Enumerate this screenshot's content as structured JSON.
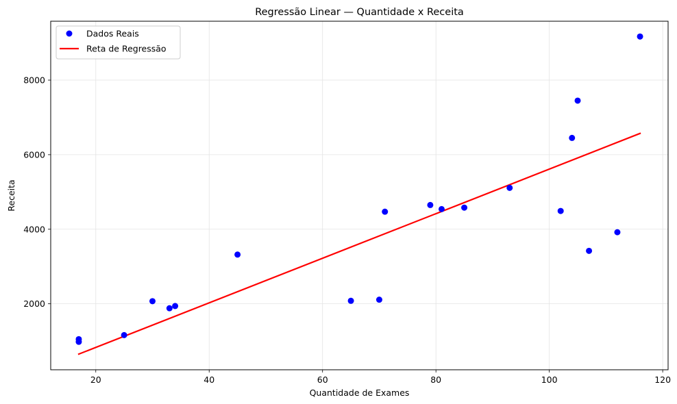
{
  "chart_data": {
    "type": "scatter",
    "title": "Regressão Linear — Quantidade x Receita",
    "xlabel": "Quantidade de Exames",
    "ylabel": "Receita",
    "xlim": [
      12.05,
      120.95
    ],
    "ylim": [
      230,
      9580
    ],
    "xticks": [
      20,
      40,
      60,
      80,
      100,
      120
    ],
    "yticks": [
      2000,
      4000,
      6000,
      8000
    ],
    "grid": true,
    "legend_position": "upper-left",
    "series": [
      {
        "name": "Dados Reais",
        "kind": "scatter",
        "color": "#0000ff",
        "points": [
          {
            "x": 17,
            "y": 1050
          },
          {
            "x": 17,
            "y": 980
          },
          {
            "x": 25,
            "y": 1160
          },
          {
            "x": 30,
            "y": 2070
          },
          {
            "x": 33,
            "y": 1880
          },
          {
            "x": 34,
            "y": 1940
          },
          {
            "x": 45,
            "y": 3320
          },
          {
            "x": 65,
            "y": 2080
          },
          {
            "x": 70,
            "y": 2110
          },
          {
            "x": 71,
            "y": 4470
          },
          {
            "x": 79,
            "y": 4650
          },
          {
            "x": 81,
            "y": 4540
          },
          {
            "x": 85,
            "y": 4580
          },
          {
            "x": 93,
            "y": 5110
          },
          {
            "x": 102,
            "y": 4490
          },
          {
            "x": 104,
            "y": 6450
          },
          {
            "x": 105,
            "y": 7450
          },
          {
            "x": 107,
            "y": 3420
          },
          {
            "x": 112,
            "y": 3920
          },
          {
            "x": 116,
            "y": 9170
          }
        ]
      },
      {
        "name": "Reta de Regressão",
        "kind": "line",
        "color": "#ff0000",
        "points": [
          {
            "x": 17,
            "y": 650
          },
          {
            "x": 116,
            "y": 6570
          }
        ]
      }
    ]
  }
}
